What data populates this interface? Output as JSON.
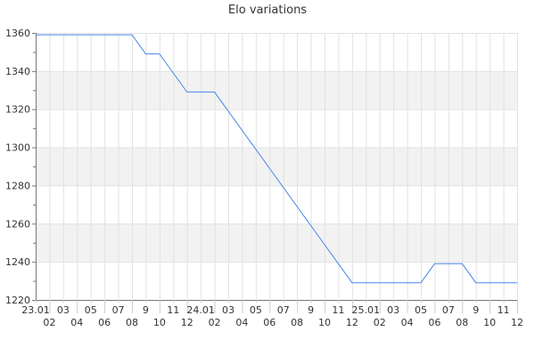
{
  "chart_data": {
    "type": "line",
    "title": "Elo variations",
    "xlabel": "",
    "ylabel": "",
    "ylim": [
      1220,
      1360
    ],
    "yticks": [
      1220,
      1240,
      1260,
      1280,
      1300,
      1320,
      1340,
      1360
    ],
    "grid": true,
    "line_color": "#4a86e8",
    "categories": [
      "23.01",
      "02",
      "03",
      "04",
      "05",
      "06",
      "07",
      "08",
      "9",
      "10",
      "11",
      "12",
      "24.01",
      "02",
      "03",
      "04",
      "05",
      "06",
      "07",
      "08",
      "9",
      "10",
      "11",
      "12",
      "25.01",
      "02",
      "03",
      "04",
      "05",
      "06",
      "07",
      "08",
      "9",
      "10",
      "11",
      "12"
    ],
    "values": [
      1359,
      1359,
      1359,
      1359,
      1359,
      1359,
      1359,
      1359,
      1349,
      1349,
      1339,
      1329,
      1329,
      1329,
      1319,
      1309,
      1299,
      1289,
      1279,
      1269,
      1259,
      1249,
      1239,
      1229,
      1229,
      1229,
      1229,
      1229,
      1229,
      1239,
      1239,
      1239,
      1229,
      1229,
      1229,
      1229
    ]
  }
}
